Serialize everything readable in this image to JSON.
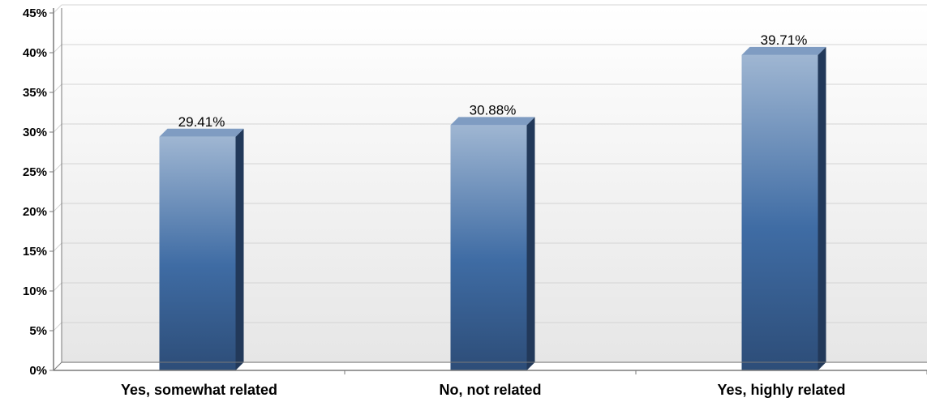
{
  "chart_data": {
    "type": "bar",
    "categories": [
      "Yes, somewhat related",
      "No, not related",
      "Yes, highly related"
    ],
    "values": [
      29.41,
      30.88,
      39.71
    ],
    "data_labels": [
      "29.41%",
      "30.88%",
      "39.71%"
    ],
    "title": "",
    "xlabel": "",
    "ylabel": "",
    "ylim": [
      0,
      45
    ],
    "yticks": [
      0,
      5,
      10,
      15,
      20,
      25,
      30,
      35,
      40,
      45
    ],
    "ytick_labels": [
      "0%",
      "5%",
      "10%",
      "15%",
      "20%",
      "25%",
      "30%",
      "35%",
      "40%",
      "45%"
    ],
    "grid": true,
    "legend": "none",
    "colors": {
      "bar_top": "#9fb6d2",
      "bar_mid": "#3f6ca4",
      "bar_bottom": "#2d4d78",
      "bar_side": "#22395a",
      "bar_cap": "#7f9cc2",
      "grid": "#d4d4d4",
      "axis": "#7a7a7a",
      "background_top": "#ffffff",
      "background_bottom": "#e6e6e6"
    }
  }
}
